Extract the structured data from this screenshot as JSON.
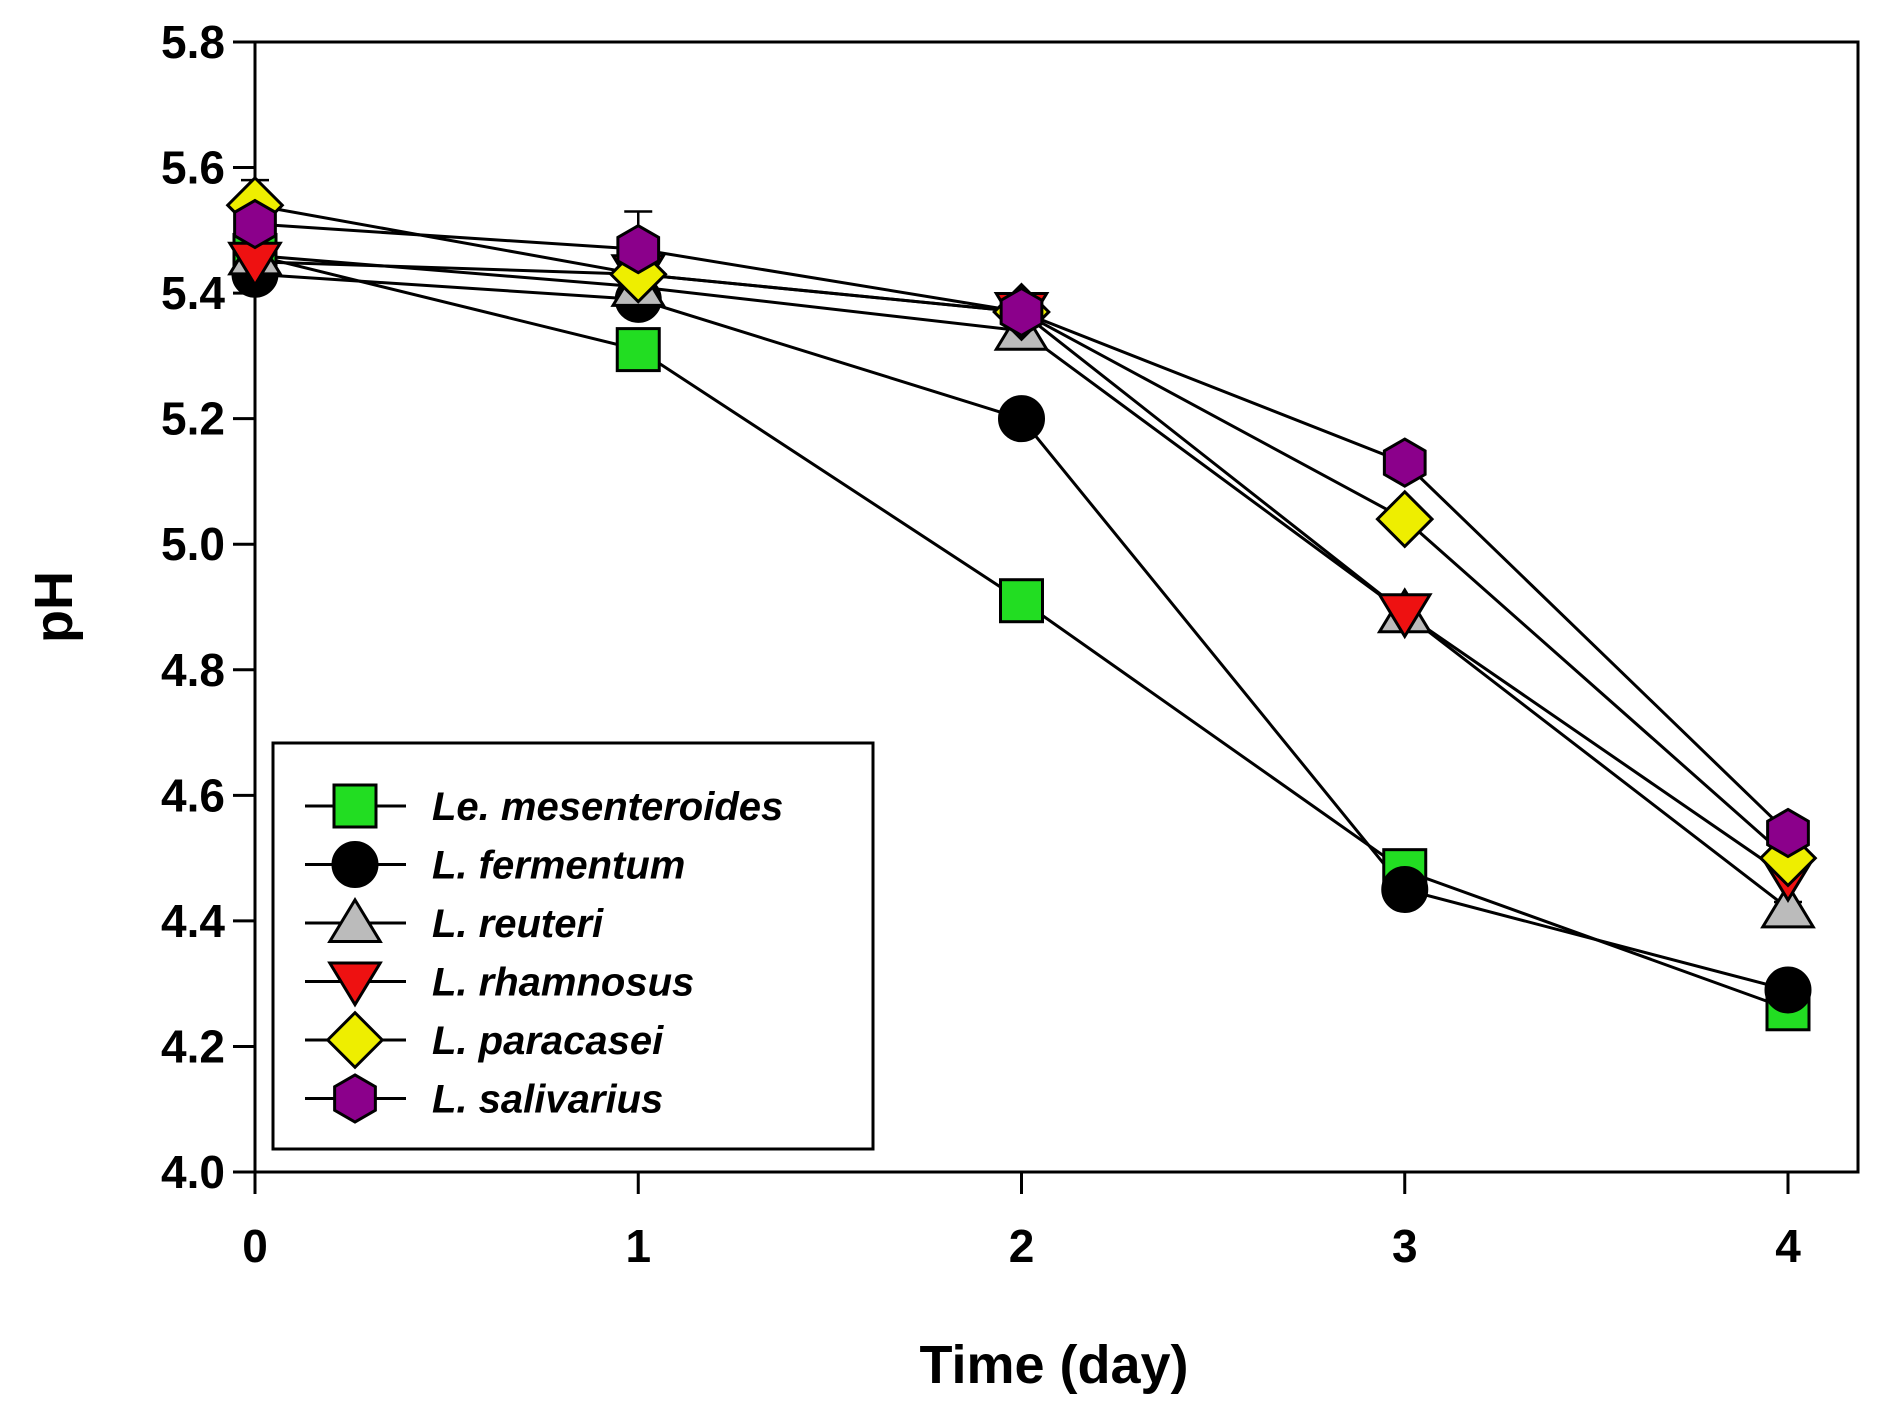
{
  "chart_data": {
    "type": "line",
    "title": "",
    "xlabel": "Time (day)",
    "ylabel": "pH",
    "xlim": [
      0,
      4
    ],
    "ylim": [
      4.0,
      5.8
    ],
    "x_ticks": [
      "0",
      "1",
      "2",
      "3",
      "4"
    ],
    "y_ticks": [
      "4.0",
      "4.2",
      "4.4",
      "4.6",
      "4.8",
      "5.0",
      "5.2",
      "5.4",
      "5.6",
      "5.8"
    ],
    "grid": false,
    "legend_position": "bottom-left",
    "x": [
      0,
      1,
      2,
      3,
      4
    ],
    "series": [
      {
        "name": "Le. mesenteroides",
        "marker": "square",
        "color": "#22dd22",
        "values": [
          5.46,
          5.31,
          4.91,
          4.48,
          4.26
        ],
        "error": [
          0.02,
          0.01,
          0.01,
          0.01,
          0.01
        ]
      },
      {
        "name": "L. fermentum",
        "marker": "circle",
        "color": "#000000",
        "values": [
          5.43,
          5.39,
          5.2,
          4.45,
          4.29
        ],
        "error": [
          0.02,
          0.01,
          0.01,
          0.01,
          0.01
        ]
      },
      {
        "name": "L. reuteri",
        "marker": "triangle-up",
        "color": "#bbbbbb",
        "values": [
          5.46,
          5.41,
          5.34,
          4.89,
          4.42
        ],
        "error": [
          0.02,
          0.01,
          0.01,
          0.01,
          0.01
        ]
      },
      {
        "name": "L. rhamnosus",
        "marker": "triangle-down",
        "color": "#ee1111",
        "values": [
          5.45,
          5.43,
          5.37,
          4.89,
          4.47
        ],
        "error": [
          0.02,
          0.02,
          0.01,
          0.01,
          0.01
        ]
      },
      {
        "name": "L. paracasei",
        "marker": "diamond",
        "color": "#eeee00",
        "values": [
          5.54,
          5.43,
          5.37,
          5.04,
          4.5
        ],
        "error": [
          0.04,
          0.02,
          0.01,
          0.01,
          0.01
        ]
      },
      {
        "name": "L. salivarius",
        "marker": "hexagon",
        "color": "#8b008b",
        "values": [
          5.51,
          5.47,
          5.37,
          5.13,
          4.54
        ],
        "error": [
          0.03,
          0.06,
          0.01,
          0.01,
          0.01
        ]
      }
    ]
  }
}
